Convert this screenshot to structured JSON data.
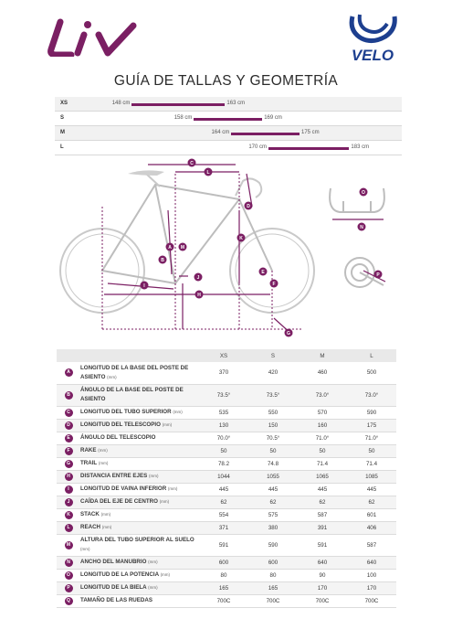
{
  "brand": {
    "liv_logo_text": "Liv",
    "velo_logo_text": "VELO",
    "accent_color": "#7b1f63"
  },
  "title": "GUÍA DE TALLAS Y GEOMETRÍA",
  "size_chart": {
    "range_min": 140,
    "range_max": 190,
    "rows": [
      {
        "size": "XS",
        "low_label": "148 cm",
        "high_label": "163 cm",
        "low": 148,
        "high": 163
      },
      {
        "size": "S",
        "low_label": "158 cm",
        "high_label": "169 cm",
        "low": 158,
        "high": 169
      },
      {
        "size": "M",
        "low_label": "164 cm",
        "high_label": "175 cm",
        "low": 164,
        "high": 175
      },
      {
        "size": "L",
        "low_label": "170 cm",
        "high_label": "183 cm",
        "low": 170,
        "high": 183
      }
    ]
  },
  "diagram_letters": [
    "A",
    "B",
    "C",
    "D",
    "E",
    "F",
    "G",
    "H",
    "I",
    "J",
    "K",
    "L",
    "M",
    "N",
    "O",
    "P"
  ],
  "geometry": {
    "columns": [
      "XS",
      "S",
      "M",
      "L"
    ],
    "rows": [
      {
        "letter": "A",
        "name": "LONGITUD DE LA BASE DEL POSTE DE ASIENTO",
        "unit": "(mm)",
        "values": [
          "370",
          "420",
          "460",
          "500"
        ]
      },
      {
        "letter": "B",
        "name": "ÁNGULO DE LA BASE DEL POSTE DE ASIENTO",
        "unit": "",
        "values": [
          "73.5°",
          "73.5°",
          "73.0°",
          "73.0°"
        ]
      },
      {
        "letter": "C",
        "name": "LONGITUD DEL TUBO SUPERIOR",
        "unit": "(mm)",
        "values": [
          "535",
          "550",
          "570",
          "590"
        ]
      },
      {
        "letter": "D",
        "name": "LONGITUD DEL TELESCOPIO",
        "unit": "(mm)",
        "values": [
          "130",
          "150",
          "160",
          "175"
        ]
      },
      {
        "letter": "E",
        "name": "ÁNGULO DEL TELESCOPIO",
        "unit": "",
        "values": [
          "70.0°",
          "70.5°",
          "71.0°",
          "71.0°"
        ]
      },
      {
        "letter": "F",
        "name": "RAKE",
        "unit": "(mm)",
        "values": [
          "50",
          "50",
          "50",
          "50"
        ]
      },
      {
        "letter": "G",
        "name": "TRAIL",
        "unit": "(mm)",
        "values": [
          "78.2",
          "74.8",
          "71.4",
          "71.4"
        ]
      },
      {
        "letter": "H",
        "name": "DISTANCIA ENTRE EJES",
        "unit": "(mm)",
        "values": [
          "1044",
          "1055",
          "1065",
          "1085"
        ]
      },
      {
        "letter": "I",
        "name": "LONGITUD DE VAINA INFERIOR",
        "unit": "(mm)",
        "values": [
          "445",
          "445",
          "445",
          "445"
        ]
      },
      {
        "letter": "J",
        "name": "CAÍDA DEL EJE DE CENTRO",
        "unit": "(mm)",
        "values": [
          "62",
          "62",
          "62",
          "62"
        ]
      },
      {
        "letter": "K",
        "name": "STACK",
        "unit": "(mm)",
        "values": [
          "554",
          "575",
          "587",
          "601"
        ]
      },
      {
        "letter": "L",
        "name": "REACH",
        "unit": "(mm)",
        "values": [
          "371",
          "380",
          "391",
          "406"
        ]
      },
      {
        "letter": "M",
        "name": "ALTURA DEL TUBO SUPERIOR AL SUELO",
        "unit": "(mm)",
        "values": [
          "591",
          "590",
          "591",
          "587"
        ]
      },
      {
        "letter": "N",
        "name": "ANCHO DEL MANUBRIO",
        "unit": "(mm)",
        "values": [
          "600",
          "600",
          "640",
          "640"
        ]
      },
      {
        "letter": "O",
        "name": "LONGITUD DE LA POTENCIA",
        "unit": "(mm)",
        "values": [
          "80",
          "80",
          "90",
          "100"
        ]
      },
      {
        "letter": "P",
        "name": "LONGITUD DE LA BIELA",
        "unit": "(mm)",
        "values": [
          "165",
          "165",
          "170",
          "170"
        ]
      },
      {
        "letter": "Q",
        "name": "TAMAÑO DE LAS RUEDAS",
        "unit": "",
        "values": [
          "700C",
          "700C",
          "700C",
          "700C"
        ]
      }
    ]
  }
}
